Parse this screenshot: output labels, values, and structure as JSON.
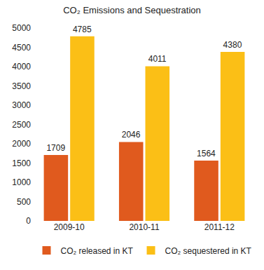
{
  "chart_data": {
    "type": "bar",
    "title": "CO₂ Emissions and Sequestration",
    "categories": [
      "2009-10",
      "2010-11",
      "2011-12"
    ],
    "series": [
      {
        "name": "CO₂ released in KT",
        "color": "#e05a1e",
        "values": [
          1709,
          2046,
          1564
        ]
      },
      {
        "name": "CO₂ sequestered in KT",
        "color": "#fbbf16",
        "values": [
          4785,
          4011,
          4380
        ]
      }
    ],
    "ylim": [
      0,
      5000
    ],
    "yticks": [
      0,
      500,
      1000,
      1500,
      2000,
      2500,
      3000,
      3500,
      4000,
      4500,
      5000
    ],
    "grid": false,
    "legend": "bottom",
    "data_labels": true
  }
}
